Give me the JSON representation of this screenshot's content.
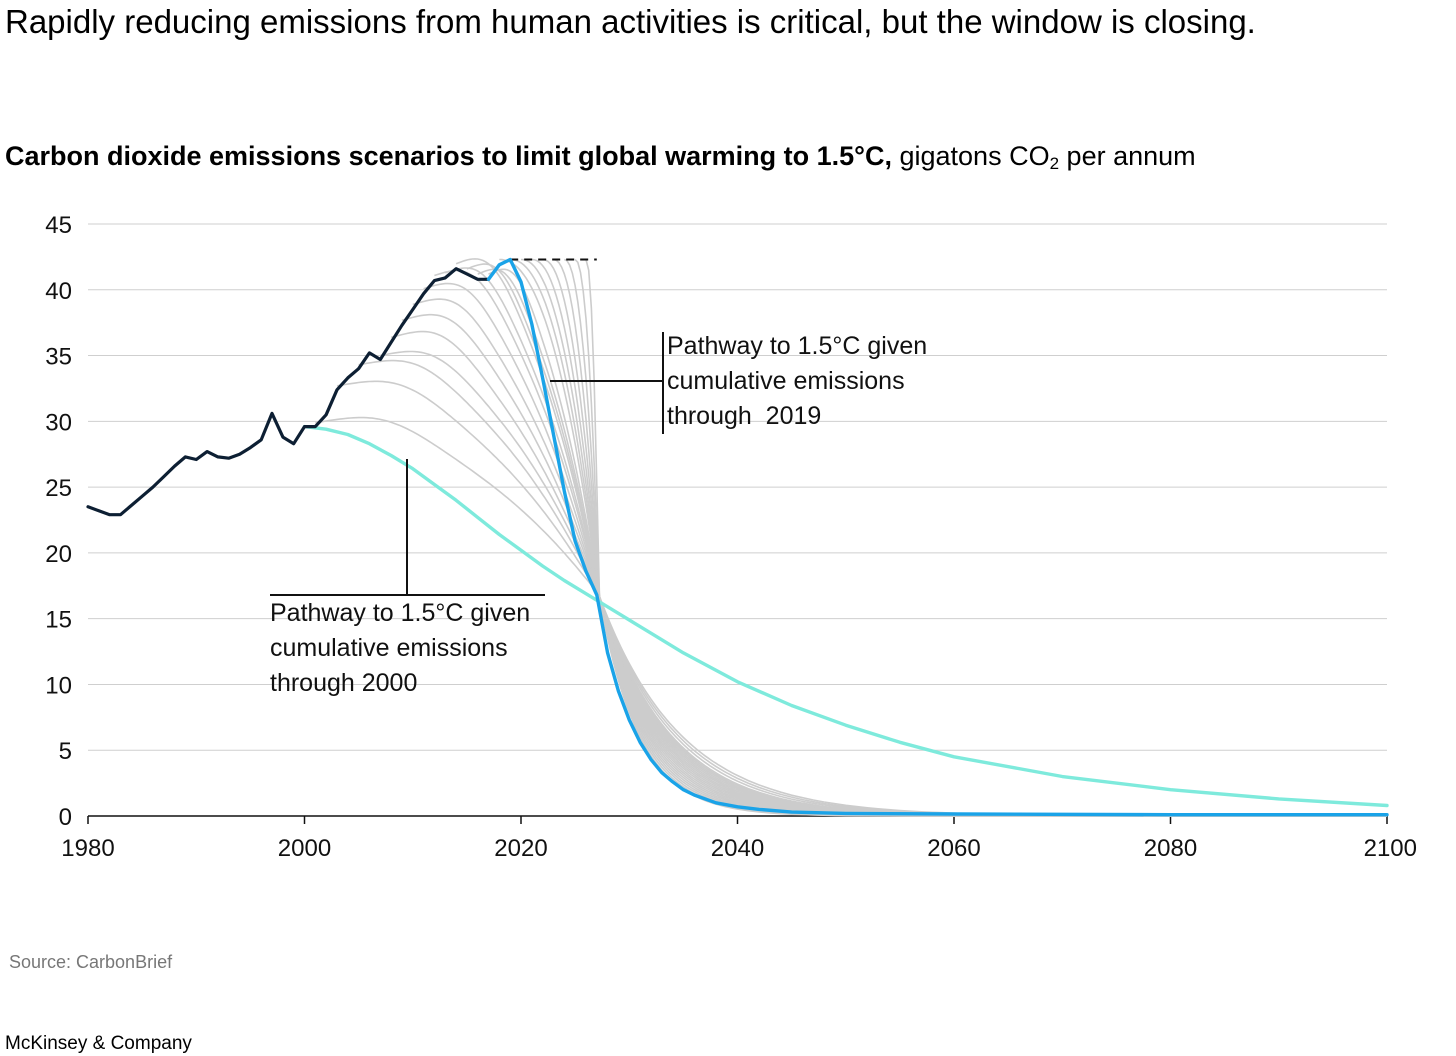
{
  "header": {
    "title": "Rapidly reducing emissions from human activities is critical, but the window is closing.",
    "subtitle_bold": "Carbon dioxide emissions scenarios to limit global warming to 1.5°C,",
    "subtitle_unit_pre": " gigatons CO",
    "subtitle_unit_sub": "2",
    "subtitle_unit_post": " per annum"
  },
  "footer": {
    "source": "Source: CarbonBrief",
    "brand": "McKinsey & Company"
  },
  "colors": {
    "historical": "#0d1f33",
    "pathway_2019": "#1aa3e8",
    "pathway_2000": "#7eeadc",
    "scenario": "#cccccc",
    "grid": "#cfcfcf"
  },
  "chart_data": {
    "type": "line",
    "title": "Carbon dioxide emissions scenarios to limit global warming to 1.5°C,",
    "ylabel": "gigatons CO2 per annum",
    "xlim": [
      1980,
      2100
    ],
    "ylim": [
      0,
      45
    ],
    "x_ticks": [
      "1980",
      "2000",
      "2020",
      "2040",
      "2060",
      "2080",
      "2100"
    ],
    "y_ticks": [
      "0",
      "5",
      "10",
      "15",
      "20",
      "25",
      "30",
      "35",
      "40",
      "45"
    ],
    "grid": "horizontal",
    "series": [
      {
        "key": "historical",
        "x": [
          1980,
          1981,
          1982,
          1983,
          1984,
          1985,
          1986,
          1987,
          1988,
          1989,
          1990,
          1991,
          1992,
          1993,
          1994,
          1995,
          1996,
          1997,
          1998,
          1999,
          2000,
          2001,
          2002,
          2003,
          2004,
          2005,
          2006,
          2007,
          2008,
          2009,
          2010,
          2011,
          2012,
          2013,
          2014,
          2015,
          2016,
          2017
        ],
        "y": [
          23.5,
          23.2,
          22.9,
          22.9,
          23.6,
          24.3,
          25.0,
          25.8,
          26.6,
          27.3,
          27.1,
          27.7,
          27.3,
          27.2,
          27.5,
          28.0,
          28.6,
          30.6,
          28.8,
          28.3,
          29.6,
          29.6,
          30.5,
          32.4,
          33.3,
          34.0,
          35.2,
          34.7,
          36.0,
          37.3,
          38.5,
          39.7,
          40.7,
          40.9,
          41.6,
          41.2,
          40.8,
          40.8
        ]
      },
      {
        "key": "pathway_2019",
        "x": [
          2017,
          2018,
          2019,
          2020,
          2021,
          2022,
          2023,
          2024,
          2025,
          2026,
          2027,
          2028,
          2029,
          2030,
          2031,
          2032,
          2033,
          2034,
          2035,
          2036,
          2038,
          2040,
          2042,
          2045,
          2050,
          2060,
          2080,
          2100
        ],
        "y": [
          40.8,
          41.9,
          42.3,
          40.6,
          37.4,
          33.3,
          29.0,
          24.7,
          20.9,
          18.6,
          16.8,
          12.4,
          9.5,
          7.3,
          5.6,
          4.3,
          3.3,
          2.6,
          2.0,
          1.6,
          1.0,
          0.7,
          0.5,
          0.3,
          0.2,
          0.15,
          0.1,
          0.1
        ]
      },
      {
        "key": "pathway_2000",
        "x": [
          2000,
          2002,
          2004,
          2006,
          2008,
          2010,
          2012,
          2014,
          2016,
          2018,
          2020,
          2022,
          2024,
          2026,
          2028,
          2030,
          2035,
          2040,
          2045,
          2050,
          2055,
          2060,
          2070,
          2080,
          2090,
          2100
        ],
        "y": [
          29.6,
          29.4,
          29.0,
          28.3,
          27.4,
          26.4,
          25.2,
          24.0,
          22.7,
          21.4,
          20.2,
          19.0,
          17.9,
          16.9,
          15.9,
          14.9,
          12.4,
          10.2,
          8.4,
          6.9,
          5.6,
          4.5,
          3.0,
          2.0,
          1.3,
          0.8
        ]
      }
    ],
    "annotations": {
      "pathway_2019": [
        "Pathway to 1.5°C given",
        "cumulative emissions",
        "through  2019"
      ],
      "pathway_2000": [
        "Pathway to 1.5°C given",
        "cumulative emissions",
        "through 2000"
      ]
    }
  }
}
